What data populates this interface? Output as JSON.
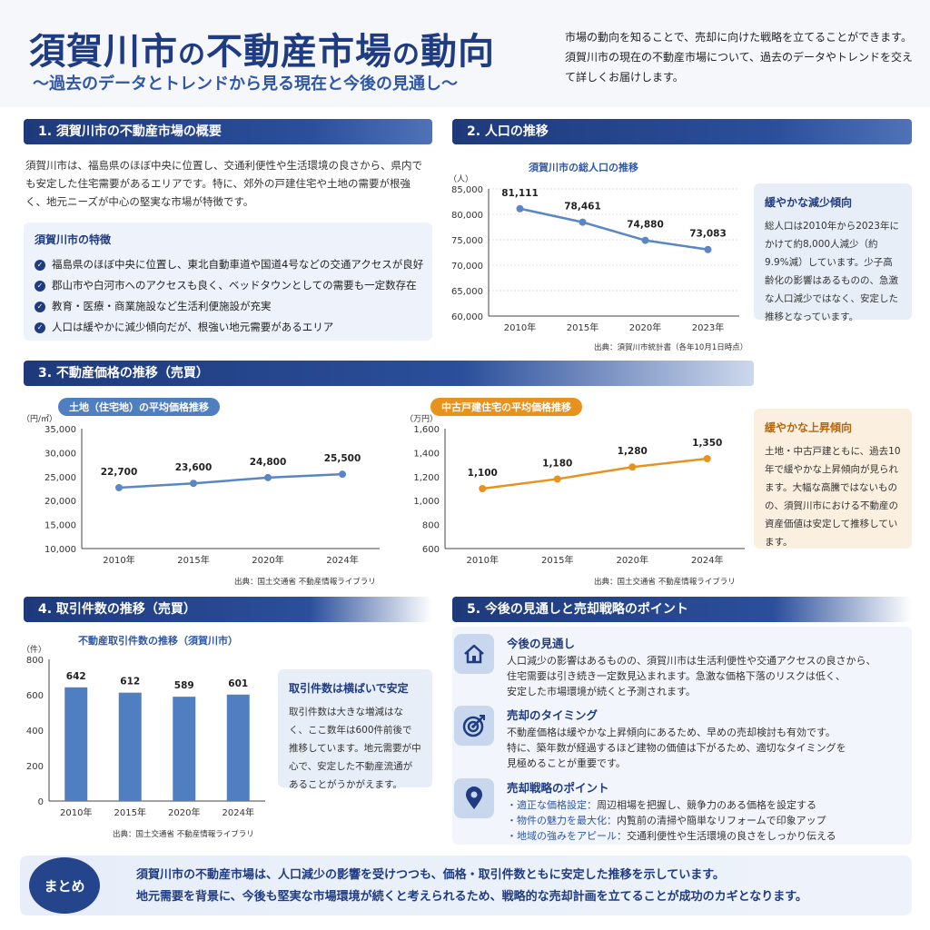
{
  "header": {
    "title_a": "須賀川市",
    "title_no1": "の",
    "title_b": "不動産市場",
    "title_no2": "の",
    "title_c": "動向",
    "subtitle": "〜過去のデータとトレンドから見る現在と今後の見通し〜",
    "lead": "市場の動向を知ることで、売却に向けた戦略を立てることができます。須賀川市の現在の不動産市場について、過去のデータやトレンドを交えて詳しくお届けします。"
  },
  "section1": {
    "heading": "1. 須賀川市の不動産市場の概要",
    "body": "須賀川市は、福島県のほぼ中央に位置し、交通利便性や生活環境の良さから、県内でも安定した住宅需要があるエリアです。特に、郊外の戸建住宅や土地の需要が根強く、地元ニーズが中心の堅実な市場が特徴です。",
    "features_title": "須賀川市の特徴",
    "features": [
      "福島県のほぼ中央に位置し、東北自動車道や国道4号などの交通アクセスが良好",
      "郡山市や白河市へのアクセスも良く、ベッドタウンとしての需要も一定数存在",
      "教育・医療・商業施設など生活利便施設が充実",
      "人口は緩やかに減少傾向だが、根強い地元需要があるエリア"
    ]
  },
  "section2": {
    "heading": "2. 人口の推移",
    "note_title": "緩やかな減少傾向",
    "note_body": "総人口は2010年から2023年にかけて約8,000人減少（約9.9%減）しています。少子高齢化の影響はあるものの、急激な人口減少ではなく、安定した推移となっています。",
    "source": "出典：須賀川市統計書（各年10月1日時点）"
  },
  "section3": {
    "heading": "3. 不動産価格の推移（売買）",
    "note_title": "緩やかな上昇傾向",
    "note_body": "土地・中古戸建ともに、過去10年で緩やかな上昇傾向が見られます。大幅な高騰ではないものの、須賀川市における不動産の資産価値は安定して推移しています。",
    "source1": "出典：国土交通省 不動産情報ライブラリ",
    "source2": "出典：国土交通省 不動産情報ライブラリ"
  },
  "section4": {
    "heading": "4. 取引件数の推移（売買）",
    "note_title": "取引件数は横ばいで安定",
    "note_body": "取引件数は大きな増減はなく、ここ数年は600件前後で推移しています。地元需要が中心で、安定した不動産流通があることがうかがえます。",
    "source": "出典：国土交通省 不動産情報ライブラリ"
  },
  "section5": {
    "heading": "5. 今後の見通しと売却戦略のポイント",
    "points": [
      {
        "icon": "house-icon",
        "title": "今後の見通し",
        "lines": [
          "人口減少の影響はあるものの、須賀川市は生活利便性や交通アクセスの良さから、",
          "住宅需要は引き続き一定数見込まれます。急激な価格下落のリスクは低く、",
          "安定した市場環境が続くと予測されます。"
        ]
      },
      {
        "icon": "target-icon",
        "title": "売却のタイミング",
        "lines": [
          "不動産価格は緩やかな上昇傾向にあるため、早めの売却検討も有効です。",
          "特に、築年数が経過するほど建物の価値は下がるため、適切なタイミングを",
          "見極めることが重要です。"
        ]
      },
      {
        "icon": "location-pin-icon",
        "title": "売却戦略のポイント",
        "lines": [
          "・適正な価格設定：周辺相場を把握し、競争力のある価格を設定する",
          "・物件の魅力を最大化：内覧前の清掃や簡単なリフォームで印象アップ",
          "・地域の強みをアピール：交通利便性や生活環境の良さをしっかり伝える"
        ]
      }
    ]
  },
  "summary": {
    "badge": "まとめ",
    "line1": "須賀川市の不動産市場は、人口減少の影響を受けつつも、価格・取引件数ともに安定した推移を示しています。",
    "line2": "地元需要を背景に、今後も堅実な市場環境が続くと考えられるため、戦略的な売却計画を立てることが成功のカギとなります。"
  },
  "colors": {
    "navy": "#1f3b82",
    "blue_line": "#5b86c5",
    "orange_line": "#e8921e",
    "bar": "#4f7fc1"
  },
  "chart_data": [
    {
      "type": "line",
      "title": "須賀川市の総人口の推移",
      "ylabel": "（人）",
      "categories": [
        "2010年",
        "2015年",
        "2020年",
        "2023年"
      ],
      "values": [
        81111,
        78461,
        74880,
        73083
      ],
      "value_labels": [
        "81,111",
        "78,461",
        "74,880",
        "73,083"
      ],
      "ylim": [
        60000,
        85000
      ],
      "yticks": [
        "60,000",
        "65,000",
        "70,000",
        "75,000",
        "80,000",
        "85,000"
      ]
    },
    {
      "type": "line",
      "title": "土地（住宅地）の平均価格推移",
      "ylabel": "（円/㎡）",
      "categories": [
        "2010年",
        "2015年",
        "2020年",
        "2024年"
      ],
      "values": [
        22700,
        23600,
        24800,
        25500
      ],
      "value_labels": [
        "22,700",
        "23,600",
        "24,800",
        "25,500"
      ],
      "ylim": [
        10000,
        35000
      ],
      "yticks": [
        "10,000",
        "15,000",
        "20,000",
        "25,000",
        "30,000",
        "35,000"
      ]
    },
    {
      "type": "line",
      "title": "中古戸建住宅の平均価格推移",
      "ylabel": "（万円）",
      "categories": [
        "2010年",
        "2015年",
        "2020年",
        "2024年"
      ],
      "values": [
        1100,
        1180,
        1280,
        1350
      ],
      "value_labels": [
        "1,100",
        "1,180",
        "1,280",
        "1,350"
      ],
      "ylim": [
        600,
        1600
      ],
      "yticks": [
        "600",
        "800",
        "1,000",
        "1,200",
        "1,400",
        "1,600"
      ]
    },
    {
      "type": "bar",
      "title": "不動産取引件数の推移（須賀川市）",
      "ylabel": "（件）",
      "categories": [
        "2010年",
        "2015年",
        "2020年",
        "2024年"
      ],
      "values": [
        642,
        612,
        589,
        601
      ],
      "value_labels": [
        "642",
        "612",
        "589",
        "601"
      ],
      "ylim": [
        0,
        800
      ],
      "yticks": [
        "0",
        "200",
        "400",
        "600",
        "800"
      ]
    }
  ]
}
